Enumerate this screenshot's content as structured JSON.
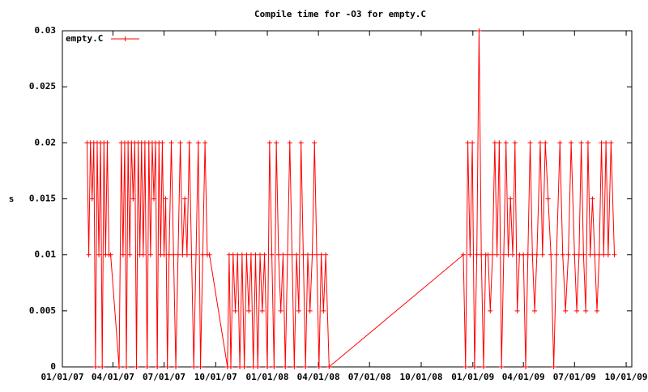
{
  "chart_data": {
    "type": "line",
    "title": "Compile time for -O3 for empty.C",
    "ylabel": "s",
    "xlim": [
      "2007-01-01",
      "2009-10-11"
    ],
    "ylim": [
      0,
      0.03
    ],
    "yticks": [
      0,
      0.005,
      0.01,
      0.015,
      0.02,
      0.025,
      0.03
    ],
    "xticks": [
      {
        "value": "2007-01-01",
        "label": "01/01/07"
      },
      {
        "value": "2007-04-01",
        "label": "04/01/07"
      },
      {
        "value": "2007-07-01",
        "label": "07/01/07"
      },
      {
        "value": "2007-10-01",
        "label": "10/01/07"
      },
      {
        "value": "2008-01-01",
        "label": "01/01/08"
      },
      {
        "value": "2008-04-01",
        "label": "04/01/08"
      },
      {
        "value": "2008-07-01",
        "label": "07/01/08"
      },
      {
        "value": "2008-10-01",
        "label": "10/01/08"
      },
      {
        "value": "2009-01-01",
        "label": "01/01/09"
      },
      {
        "value": "2009-04-01",
        "label": "04/01/09"
      },
      {
        "value": "2009-07-01",
        "label": "07/01/09"
      },
      {
        "value": "2009-10-01",
        "label": "10/01/09"
      }
    ],
    "legend": "top-left",
    "x": [
      "2007-02-14",
      "2007-02-17",
      "2007-02-20",
      "2007-02-23",
      "2007-02-26",
      "2007-03-01",
      "2007-03-04",
      "2007-03-07",
      "2007-03-10",
      "2007-03-13",
      "2007-03-16",
      "2007-03-19",
      "2007-03-22",
      "2007-03-25",
      "2007-03-28",
      "2007-04-12",
      "2007-04-16",
      "2007-04-19",
      "2007-04-22",
      "2007-04-25",
      "2007-04-28",
      "2007-05-01",
      "2007-05-04",
      "2007-05-07",
      "2007-05-10",
      "2007-05-13",
      "2007-05-16",
      "2007-05-19",
      "2007-05-22",
      "2007-05-25",
      "2007-05-28",
      "2007-06-01",
      "2007-06-04",
      "2007-06-07",
      "2007-06-10",
      "2007-06-13",
      "2007-06-16",
      "2007-06-19",
      "2007-06-22",
      "2007-06-25",
      "2007-06-28",
      "2007-07-01",
      "2007-07-04",
      "2007-07-07",
      "2007-07-10",
      "2007-07-14",
      "2007-07-18",
      "2007-07-22",
      "2007-07-26",
      "2007-07-30",
      "2007-08-03",
      "2007-08-07",
      "2007-08-11",
      "2007-08-15",
      "2007-08-19",
      "2007-08-23",
      "2007-08-27",
      "2007-08-31",
      "2007-09-04",
      "2007-09-08",
      "2007-09-12",
      "2007-09-16",
      "2007-09-20",
      "2007-10-22",
      "2007-10-25",
      "2007-10-28",
      "2007-11-01",
      "2007-11-05",
      "2007-11-09",
      "2007-11-13",
      "2007-11-17",
      "2007-11-21",
      "2007-11-25",
      "2007-11-29",
      "2007-12-03",
      "2007-12-07",
      "2007-12-11",
      "2007-12-15",
      "2007-12-19",
      "2007-12-23",
      "2007-12-27",
      "2008-01-01",
      "2008-01-05",
      "2008-01-09",
      "2008-01-13",
      "2008-01-17",
      "2008-01-21",
      "2008-01-25",
      "2008-01-29",
      "2008-02-02",
      "2008-02-06",
      "2008-02-10",
      "2008-02-14",
      "2008-02-18",
      "2008-02-22",
      "2008-02-26",
      "2008-03-01",
      "2008-03-05",
      "2008-03-09",
      "2008-03-13",
      "2008-03-17",
      "2008-03-21",
      "2008-03-25",
      "2008-03-29",
      "2008-04-02",
      "2008-04-06",
      "2008-04-10",
      "2008-04-14",
      "2008-04-20",
      "2008-12-15",
      "2008-12-19",
      "2008-12-23",
      "2008-12-27",
      "2008-12-31",
      "2009-01-04",
      "2009-01-08",
      "2009-01-12",
      "2009-01-16",
      "2009-01-20",
      "2009-01-24",
      "2009-01-28",
      "2009-02-01",
      "2009-02-05",
      "2009-02-09",
      "2009-02-13",
      "2009-02-17",
      "2009-02-21",
      "2009-02-25",
      "2009-03-01",
      "2009-03-05",
      "2009-03-09",
      "2009-03-13",
      "2009-03-17",
      "2009-03-21",
      "2009-03-25",
      "2009-04-01",
      "2009-04-05",
      "2009-04-09",
      "2009-04-13",
      "2009-04-17",
      "2009-04-21",
      "2009-04-25",
      "2009-05-01",
      "2009-05-05",
      "2009-05-10",
      "2009-05-15",
      "2009-05-20",
      "2009-05-25",
      "2009-05-30",
      "2009-06-05",
      "2009-06-10",
      "2009-06-15",
      "2009-06-20",
      "2009-06-25",
      "2009-07-01",
      "2009-07-05",
      "2009-07-09",
      "2009-07-13",
      "2009-07-17",
      "2009-07-21",
      "2009-07-25",
      "2009-07-29",
      "2009-08-02",
      "2009-08-06",
      "2009-08-10",
      "2009-08-14",
      "2009-08-18",
      "2009-08-22",
      "2009-08-26",
      "2009-08-30",
      "2009-09-04",
      "2009-09-10"
    ],
    "series": [
      {
        "name": "empty.C",
        "color": "#ff0000",
        "values": [
          0.02,
          0.01,
          0.02,
          0.015,
          0.02,
          0,
          0.02,
          0.01,
          0.02,
          0,
          0.02,
          0.01,
          0.02,
          0.01,
          0.01,
          0,
          0.02,
          0.01,
          0.02,
          0,
          0.02,
          0.01,
          0.02,
          0.015,
          0.02,
          0,
          0.02,
          0.01,
          0.02,
          0.01,
          0.02,
          0,
          0.02,
          0.01,
          0.02,
          0.015,
          0.02,
          0,
          0.02,
          0.01,
          0.02,
          0.01,
          0.015,
          0,
          0.01,
          0.02,
          0.01,
          0,
          0.01,
          0.02,
          0.01,
          0.015,
          0.01,
          0.02,
          0.01,
          0,
          0.01,
          0.02,
          0,
          0.01,
          0.02,
          0.01,
          0.01,
          0,
          0.01,
          0,
          0.01,
          0.005,
          0.01,
          0,
          0.01,
          0,
          0.01,
          0.005,
          0.01,
          0,
          0.01,
          0,
          0.01,
          0.005,
          0.01,
          0,
          0.02,
          0.01,
          0,
          0.02,
          0.01,
          0.005,
          0.01,
          0,
          0.01,
          0.02,
          0.01,
          0,
          0.01,
          0.005,
          0.02,
          0.01,
          0,
          0.01,
          0.005,
          0.01,
          0.02,
          0.01,
          0,
          0.01,
          0.005,
          0.01,
          0,
          0.01,
          0,
          0.02,
          0.01,
          0.02,
          0,
          0.01,
          0.03,
          0.01,
          0,
          0.01,
          0.01,
          0.005,
          0.01,
          0.02,
          0.01,
          0.02,
          0,
          0.01,
          0.02,
          0.01,
          0.015,
          0.01,
          0.02,
          0.005,
          0.01,
          0.01,
          0,
          0.01,
          0.02,
          0.01,
          0.005,
          0.01,
          0.02,
          0.01,
          0.02,
          0.015,
          0.01,
          0,
          0.01,
          0.02,
          0.01,
          0.005,
          0.01,
          0.02,
          0.01,
          0.005,
          0.01,
          0.02,
          0.01,
          0.005,
          0.02,
          0.01,
          0.015,
          0.01,
          0.005,
          0.01,
          0.02,
          0.01,
          0.02,
          0.01,
          0.02,
          0.01
        ]
      }
    ]
  }
}
